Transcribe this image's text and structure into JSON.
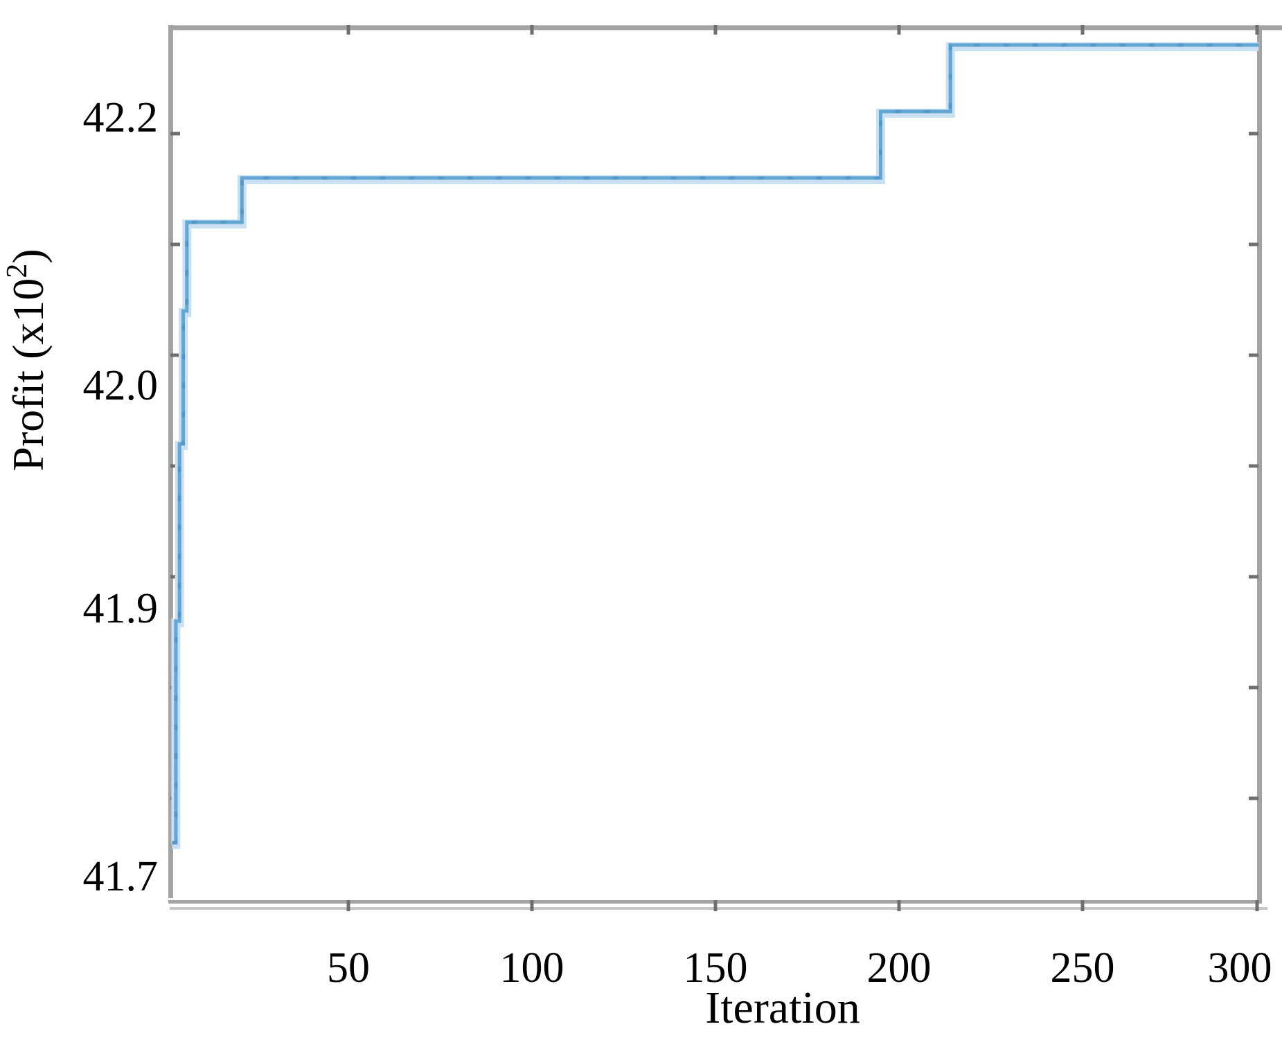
{
  "chart_data": {
    "type": "line",
    "title": "",
    "xlabel": "Iteration",
    "ylabel_parts": {
      "prefix": "Profit (x10",
      "sup": "2",
      "suffix": ")"
    },
    "x_tick_labels": [
      "50",
      "100",
      "150",
      "200",
      "250",
      "300"
    ],
    "x_tick_values": [
      50,
      100,
      150,
      200,
      250,
      300
    ],
    "y_tick_labels": [
      "42.2",
      "42.0",
      "41.9",
      "41.7"
    ],
    "y_minor_tick_values": [
      42.2,
      42.15,
      42.1,
      42.05,
      42.0,
      41.95,
      41.9
    ],
    "xlim": [
      1,
      300
    ],
    "ylim": [
      41.7,
      42.25
    ],
    "grid": false,
    "legend": null,
    "series": [
      {
        "name": "Profit",
        "style": "step",
        "steps": [
          [
            2,
            41.88
          ],
          [
            3,
            41.98
          ],
          [
            4,
            42.06
          ],
          [
            5,
            42.12
          ],
          [
            6,
            42.16
          ],
          [
            21,
            42.18
          ],
          [
            195,
            42.21
          ],
          [
            214,
            42.24
          ]
        ],
        "x_end": 298
      }
    ]
  },
  "colors": {
    "line_core": "#63a5d3",
    "line_halo": "#c9e0f2",
    "line_marks": "#4f97c9",
    "spine": "#a3a3a3",
    "spine_shadow": "#c6c6c6",
    "tick": "#6f6f6f",
    "text": "#000000"
  }
}
